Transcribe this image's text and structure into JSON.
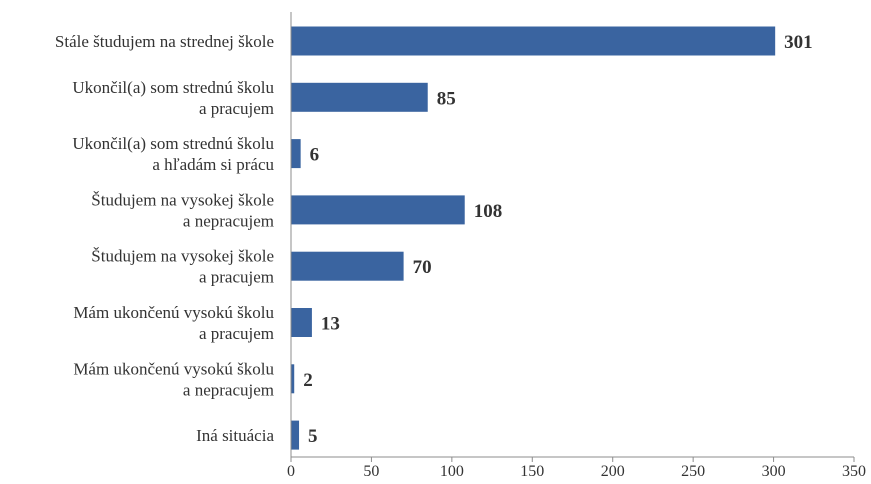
{
  "chart_data": {
    "type": "bar",
    "orientation": "horizontal",
    "title": "",
    "xlabel": "",
    "ylabel": "",
    "categories": [
      [
        "Stále študujem na strednej škole"
      ],
      [
        "Ukončil(a) som strednú školu",
        "a pracujem"
      ],
      [
        "Ukončil(a) som strednú školu",
        "a hľadám si prácu"
      ],
      [
        "Študujem na vysokej škole",
        "a nepracujem"
      ],
      [
        "Študujem na vysokej škole",
        "a pracujem"
      ],
      [
        "Mám ukončenú vysokú školu",
        "a pracujem"
      ],
      [
        "Mám ukončenú vysokú školu",
        "a nepracujem"
      ],
      [
        "Iná situácia"
      ]
    ],
    "values": [
      301,
      85,
      6,
      108,
      70,
      13,
      2,
      5
    ],
    "value_labels": [
      "301",
      "85",
      "6",
      "108",
      "70",
      "13",
      "2",
      "5"
    ],
    "xlim": [
      0,
      350
    ],
    "xticks": [
      0,
      50,
      100,
      150,
      200,
      250,
      300,
      350
    ],
    "xtick_labels": [
      "0",
      "50",
      "100",
      "150",
      "200",
      "250",
      "300",
      "350"
    ],
    "grid": false,
    "legend": "none",
    "bar_color": "#3a64a0",
    "text_color": "#333333",
    "axis_color": "#8c8c8c"
  }
}
